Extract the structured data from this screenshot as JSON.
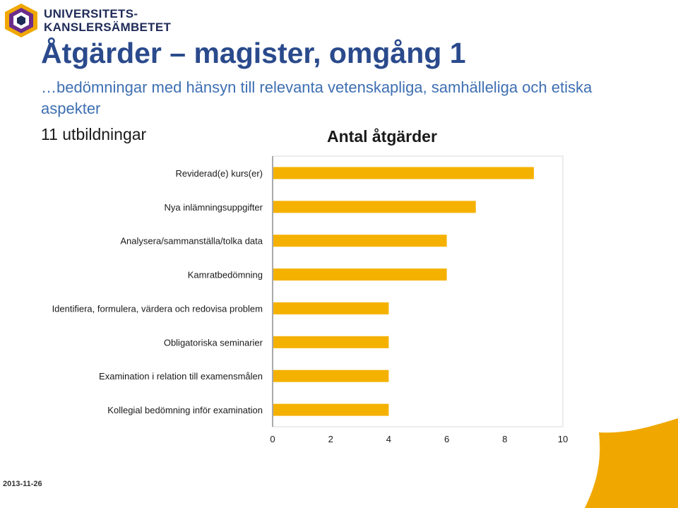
{
  "header": {
    "logo_line1": "UNIVERSITETS-",
    "logo_line2": "KANSLERSÄMBETET",
    "title": "Åtgärder – magister, omgång 1",
    "subtitle": "…bedömningar med hänsyn till relevanta vetenskapliga, samhälleliga och etiska aspekter",
    "program_count": "11 utbildningar"
  },
  "footer": {
    "date": "2013-11-26"
  },
  "colors": {
    "bar": "#f5b100",
    "title": "#2a4a8c",
    "subtitle": "#3e6fb2",
    "logo_navy": "#1f2b58",
    "logo_gold": "#f0a800",
    "logo_purple": "#6b2c8c"
  },
  "chart_data": {
    "type": "bar",
    "orientation": "horizontal",
    "title": "Antal åtgärder",
    "categories": [
      "Reviderad(e) kurs(er)",
      "Nya inlämningsuppgifter",
      "Analysera/sammanställa/tolka data",
      "Kamratbedömning",
      "Identifiera, formulera, värdera och redovisa problem",
      "Obligatoriska seminarier",
      "Examination i relation till examensmålen",
      "Kollegial bedömning inför examination"
    ],
    "values": [
      9,
      7,
      6,
      6,
      4,
      4,
      4,
      4
    ],
    "xlim": [
      0,
      10
    ],
    "xticks": [
      0,
      2,
      4,
      6,
      8,
      10
    ],
    "grid": false
  }
}
